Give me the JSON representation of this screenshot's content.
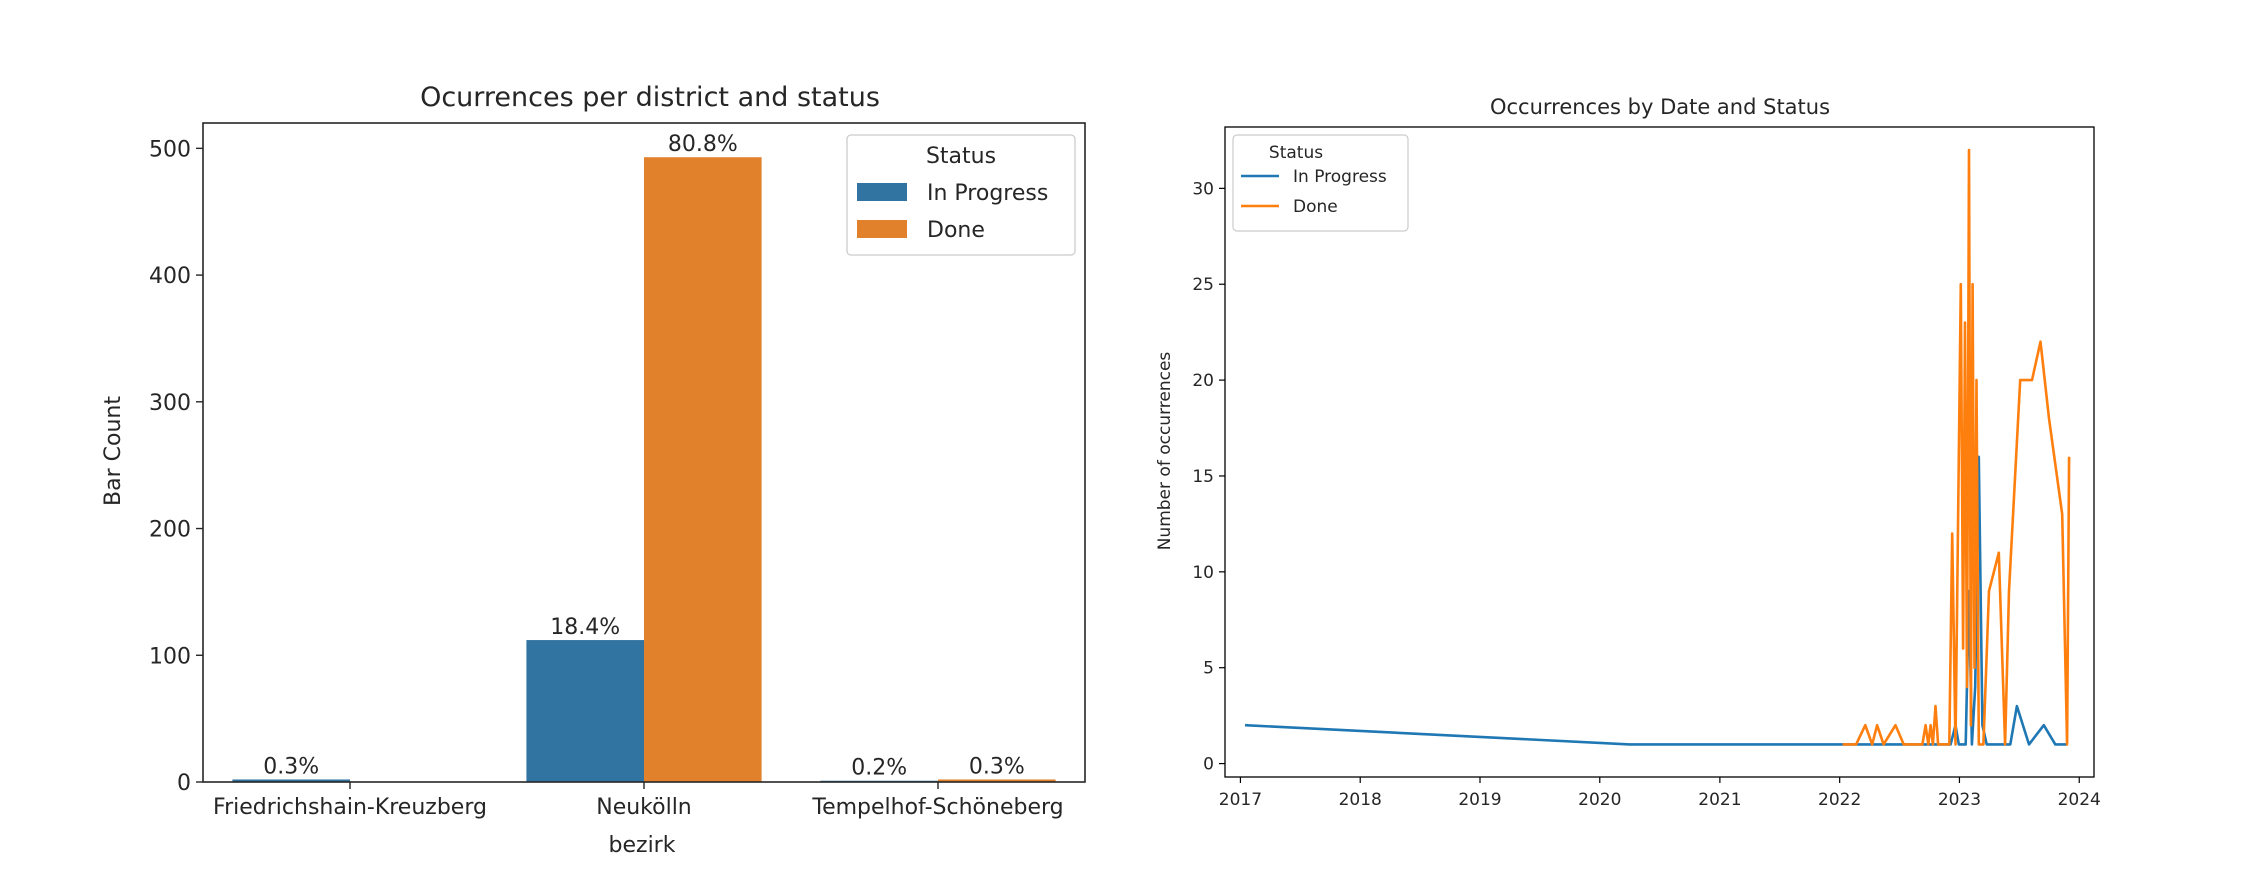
{
  "chart_data": [
    {
      "type": "bar",
      "title": "Ocurrences per district and status",
      "xlabel": "bezirk",
      "ylabel": "Bar Count",
      "ylim": [
        0,
        520
      ],
      "yticks": [
        0,
        100,
        200,
        300,
        400,
        500
      ],
      "categories": [
        "Friedrichshain-Kreuzberg",
        "Neukölln",
        "Tempelhof-Schöneberg"
      ],
      "legend": {
        "title": "Status",
        "placement": "top-right"
      },
      "series": [
        {
          "name": "In Progress",
          "color": "#3274a1",
          "values": [
            2,
            112,
            1
          ],
          "labels": [
            "0.3%",
            "18.4%",
            "0.2%"
          ]
        },
        {
          "name": "Done",
          "color": "#e1812c",
          "values": [
            0,
            493,
            2
          ],
          "labels": [
            "",
            "80.8%",
            "0.3%"
          ]
        }
      ],
      "grid": false
    },
    {
      "type": "line",
      "title": "Occurrences by Date and Status",
      "xlabel": "",
      "ylabel": "Number of occurrences",
      "xlim": [
        "2016-11-15",
        "2024-02-15"
      ],
      "ylim": [
        -0.7,
        33.2
      ],
      "xticks": [
        "2017",
        "2018",
        "2019",
        "2020",
        "2021",
        "2022",
        "2023",
        "2024"
      ],
      "yticks": [
        0,
        5,
        10,
        15,
        20,
        25,
        30
      ],
      "legend": {
        "title": "Status",
        "placement": "top-left"
      },
      "grid": false,
      "series": [
        {
          "name": "In Progress",
          "color": "#1f77b4",
          "points": [
            [
              "2017-01-15",
              2
            ],
            [
              "2020-04-01",
              1
            ],
            [
              "2022-06-01",
              1
            ],
            [
              "2022-12-05",
              1
            ],
            [
              "2022-12-20",
              2
            ],
            [
              "2022-12-30",
              1
            ],
            [
              "2023-01-20",
              1
            ],
            [
              "2023-01-30",
              9
            ],
            [
              "2023-02-08",
              1
            ],
            [
              "2023-02-18",
              4
            ],
            [
              "2023-03-01",
              16
            ],
            [
              "2023-03-12",
              2
            ],
            [
              "2023-03-25",
              1
            ],
            [
              "2023-05-15",
              1
            ],
            [
              "2023-06-05",
              1
            ],
            [
              "2023-06-25",
              3
            ],
            [
              "2023-08-01",
              1
            ],
            [
              "2023-09-15",
              2
            ],
            [
              "2023-10-20",
              1
            ],
            [
              "2023-11-25",
              1
            ]
          ]
        },
        {
          "name": "Done",
          "color": "#ff7f0e",
          "points": [
            [
              "2022-01-10",
              1
            ],
            [
              "2022-02-20",
              1
            ],
            [
              "2022-03-20",
              2
            ],
            [
              "2022-04-10",
              1
            ],
            [
              "2022-04-25",
              2
            ],
            [
              "2022-05-15",
              1
            ],
            [
              "2022-06-20",
              2
            ],
            [
              "2022-07-15",
              1
            ],
            [
              "2022-09-10",
              1
            ],
            [
              "2022-09-20",
              2
            ],
            [
              "2022-09-28",
              1
            ],
            [
              "2022-10-05",
              2
            ],
            [
              "2022-10-12",
              1
            ],
            [
              "2022-10-20",
              3
            ],
            [
              "2022-10-28",
              1
            ],
            [
              "2022-11-15",
              1
            ],
            [
              "2022-12-01",
              1
            ],
            [
              "2022-12-10",
              12
            ],
            [
              "2022-12-20",
              1
            ],
            [
              "2023-01-05",
              25
            ],
            [
              "2023-01-12",
              6
            ],
            [
              "2023-01-18",
              23
            ],
            [
              "2023-01-24",
              4
            ],
            [
              "2023-01-30",
              32
            ],
            [
              "2023-02-05",
              2
            ],
            [
              "2023-02-10",
              25
            ],
            [
              "2023-02-16",
              5
            ],
            [
              "2023-02-22",
              20
            ],
            [
              "2023-03-01",
              1
            ],
            [
              "2023-03-15",
              1
            ],
            [
              "2023-04-01",
              9
            ],
            [
              "2023-05-01",
              11
            ],
            [
              "2023-05-20",
              1
            ],
            [
              "2023-06-01",
              9
            ],
            [
              "2023-07-05",
              20
            ],
            [
              "2023-08-10",
              20
            ],
            [
              "2023-09-05",
              22
            ],
            [
              "2023-10-01",
              18
            ],
            [
              "2023-11-10",
              13
            ],
            [
              "2023-11-25",
              1
            ],
            [
              "2023-12-01",
              16
            ]
          ]
        }
      ]
    }
  ]
}
